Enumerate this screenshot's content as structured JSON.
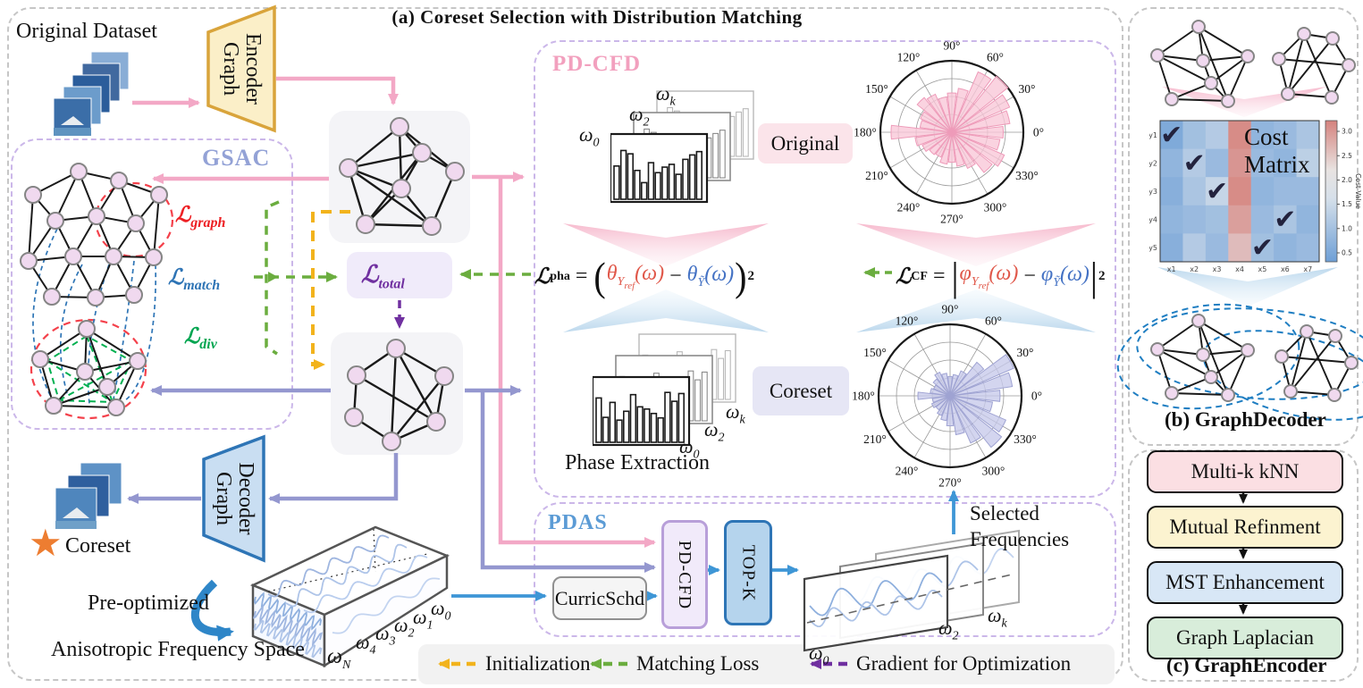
{
  "panel_a": {
    "title": "(a) Coreset Selection with Distribution Matching",
    "original_dataset_label": "Original Dataset",
    "graph_encoder": {
      "line1": "Graph",
      "line2": "Encoder"
    },
    "graph_decoder": {
      "line1": "Graph",
      "line2": "Decoder"
    },
    "gsac_label": "GSAC",
    "losses": {
      "L": "ℒ",
      "graph_sub": "graph",
      "match_sub": "match",
      "div_sub": "div",
      "total_sub": "total",
      "graph_color": "#ed2024",
      "match_color": "#2e74b5",
      "div_color": "#00a550",
      "total_color": "#7030a0"
    },
    "pdcfd_label": "PD-CFD",
    "original_badge": "Original",
    "coreset_badge": "Coreset",
    "phase_extraction_label": "Phase Extraction",
    "formula": {
      "L": "ℒ",
      "pha_sub": "pha",
      "cf_sub": "CF",
      "eq": "=",
      "theta": "θ",
      "phi": "φ",
      "Y": "Y",
      "ref": "ref",
      "Ytilde": "Ỹ",
      "omega_arg": "(ω)",
      "minus": "−",
      "sup": "2",
      "lparen": "(",
      "rparen": ")",
      "vbar": "|"
    },
    "omega": {
      "sym": "ω",
      "sub_k": "k",
      "sub_2": "2",
      "sub_0": "0",
      "sub_1": "1",
      "sub_3": "3",
      "sub_4": "4",
      "sub_N": "N"
    },
    "pdas_label": "PDAS",
    "curricschd_label": "CurricSchd",
    "pdcfd_box_label": "PD-CFD",
    "topk_label": "TOP-K",
    "selected_frequencies": {
      "line1": "Selected",
      "line2": "Frequencies"
    },
    "star_icon": "★",
    "coreset_star_label": "Coreset",
    "preoptimized_label": "Pre-optimized",
    "anisotropic_label": "Anisotropic Frequency Space",
    "legend": [
      {
        "label": "Initialization",
        "color": "#f2b31c"
      },
      {
        "label": "Matching Loss",
        "color": "#6bad3f"
      },
      {
        "label": "Gradient for Optimization",
        "color": "#7030a0"
      }
    ],
    "accent_colors": {
      "pink_arrow": "#f3a8c6",
      "slate_arrow": "#9497cf",
      "blue_arrow": "#3e96d6",
      "pdas_title": "#5b9bd5",
      "pdcfd_title": "#f2a0be",
      "gsac_title": "#93a2d6"
    }
  },
  "panel_b": {
    "caption": "(b) GraphDecoder",
    "cost_matrix_label": {
      "line1": "Cost",
      "line2": "Matrix"
    }
  },
  "panel_c": {
    "caption": "(c) GraphEncoder",
    "steps": [
      {
        "label": "Multi-k kNN",
        "color": "#fbdfe3"
      },
      {
        "label": "Mutual Refinment",
        "color": "#fcf3d0"
      },
      {
        "label": "MST Enhancement",
        "color": "#d8e7f6"
      },
      {
        "label": "Graph Laplacian",
        "color": "#d8edda"
      }
    ]
  },
  "chart_data": [
    {
      "id": "original_spectra",
      "type": "bar",
      "frames": 3,
      "values": [
        0.6,
        0.88,
        0.82,
        0.52,
        0.3,
        0.66,
        0.48,
        0.58,
        0.63,
        0.45,
        0.72,
        0.8,
        0.86
      ],
      "frame_labels": [
        "ω0",
        "ω2",
        "ωk"
      ],
      "ylim": [
        0,
        1
      ]
    },
    {
      "id": "original_phase_rose",
      "type": "polar_bar",
      "bin_width_deg": 15,
      "rings": 4,
      "rmax": 1.0,
      "values": [
        0.72,
        0.82,
        0.88,
        1.0,
        0.92,
        0.62,
        0.55,
        0.5,
        0.58,
        0.62,
        0.48,
        0.45,
        0.85,
        0.52,
        0.45,
        0.4,
        0.38,
        0.45,
        0.42,
        0.48,
        0.55,
        0.72,
        0.8,
        0.68
      ],
      "angle_labels": [
        "0°",
        "30°",
        "60°",
        "90°",
        "120°",
        "150°",
        "180°",
        "210°",
        "240°",
        "270°",
        "300°",
        "330°"
      ],
      "color": "#f8c6d7",
      "edge": "#ee9bb9"
    },
    {
      "id": "coreset_spectra",
      "type": "bar",
      "frames": 3,
      "values": [
        0.8,
        0.45,
        0.72,
        0.4,
        0.56,
        0.86,
        0.64,
        0.6,
        0.52,
        0.44,
        0.9,
        0.74,
        0.88
      ],
      "frame_labels": [
        "ω0",
        "ω2",
        "ωk"
      ],
      "ylim": [
        0,
        1
      ]
    },
    {
      "id": "coreset_phase_rose",
      "type": "polar_bar",
      "bin_width_deg": 15,
      "rings": 4,
      "rmax": 1.0,
      "values": [
        0.7,
        0.88,
        0.97,
        0.6,
        0.38,
        0.3,
        0.27,
        0.32,
        0.36,
        0.3,
        0.25,
        0.28,
        0.45,
        0.25,
        0.28,
        0.25,
        0.3,
        0.35,
        0.42,
        0.55,
        0.72,
        0.92,
        0.85,
        0.6
      ],
      "angle_labels": [
        "0°",
        "30°",
        "60°",
        "90°",
        "120°",
        "150°",
        "180°",
        "210°",
        "240°",
        "270°",
        "300°",
        "330°"
      ],
      "color": "#c6c9ea",
      "edge": "#9fa3d2"
    },
    {
      "id": "cost_matrix",
      "type": "heatmap",
      "x_labels": [
        "x1",
        "x2",
        "x3",
        "x4",
        "x5",
        "x6",
        "x7"
      ],
      "y_labels": [
        "y1",
        "y2",
        "y3",
        "y4",
        "y5"
      ],
      "values": [
        [
          0.7,
          1.1,
          1.3,
          2.9,
          0.9,
          1.0,
          1.2
        ],
        [
          0.9,
          1.3,
          1.0,
          2.8,
          1.0,
          0.9,
          1.4
        ],
        [
          0.8,
          1.2,
          1.5,
          2.9,
          0.9,
          1.0,
          1.0
        ],
        [
          0.9,
          1.0,
          1.1,
          2.7,
          1.0,
          1.2,
          0.9
        ],
        [
          0.8,
          1.3,
          1.0,
          2.4,
          1.1,
          0.9,
          1.0
        ]
      ],
      "vmin": 0.5,
      "vmax": 3.0,
      "checks": [
        [
          0,
          0
        ],
        [
          1,
          1
        ],
        [
          2,
          2
        ],
        [
          3,
          5
        ],
        [
          4,
          4
        ]
      ],
      "check_glyph": "✔",
      "colorbar": {
        "label": "Cost Value",
        "ticks": [
          "3.0",
          "2.5",
          "2.0",
          "1.5",
          "1.0",
          "0.5"
        ]
      }
    }
  ]
}
